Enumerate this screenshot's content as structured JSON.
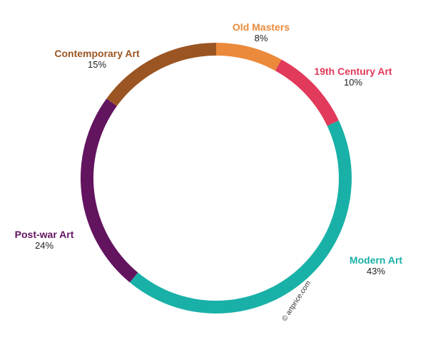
{
  "chart_data": {
    "type": "pie",
    "title": "",
    "slices": [
      {
        "label": "Old Masters",
        "value": 8,
        "value_label": "8%",
        "color": "#ea8a3a"
      },
      {
        "label": "19th Century Art",
        "value": 10,
        "value_label": "10%",
        "color": "#e23a5a"
      },
      {
        "label": "Modern Art",
        "value": 43,
        "value_label": "43%",
        "color": "#19b1a7"
      },
      {
        "label": "Post-war Art",
        "value": 24,
        "value_label": "24%",
        "color": "#62145f"
      },
      {
        "label": "Contemporary Art",
        "value": 15,
        "value_label": "15%",
        "color": "#9b5522"
      }
    ],
    "style": "donut",
    "watermark": "© artprice.com"
  }
}
